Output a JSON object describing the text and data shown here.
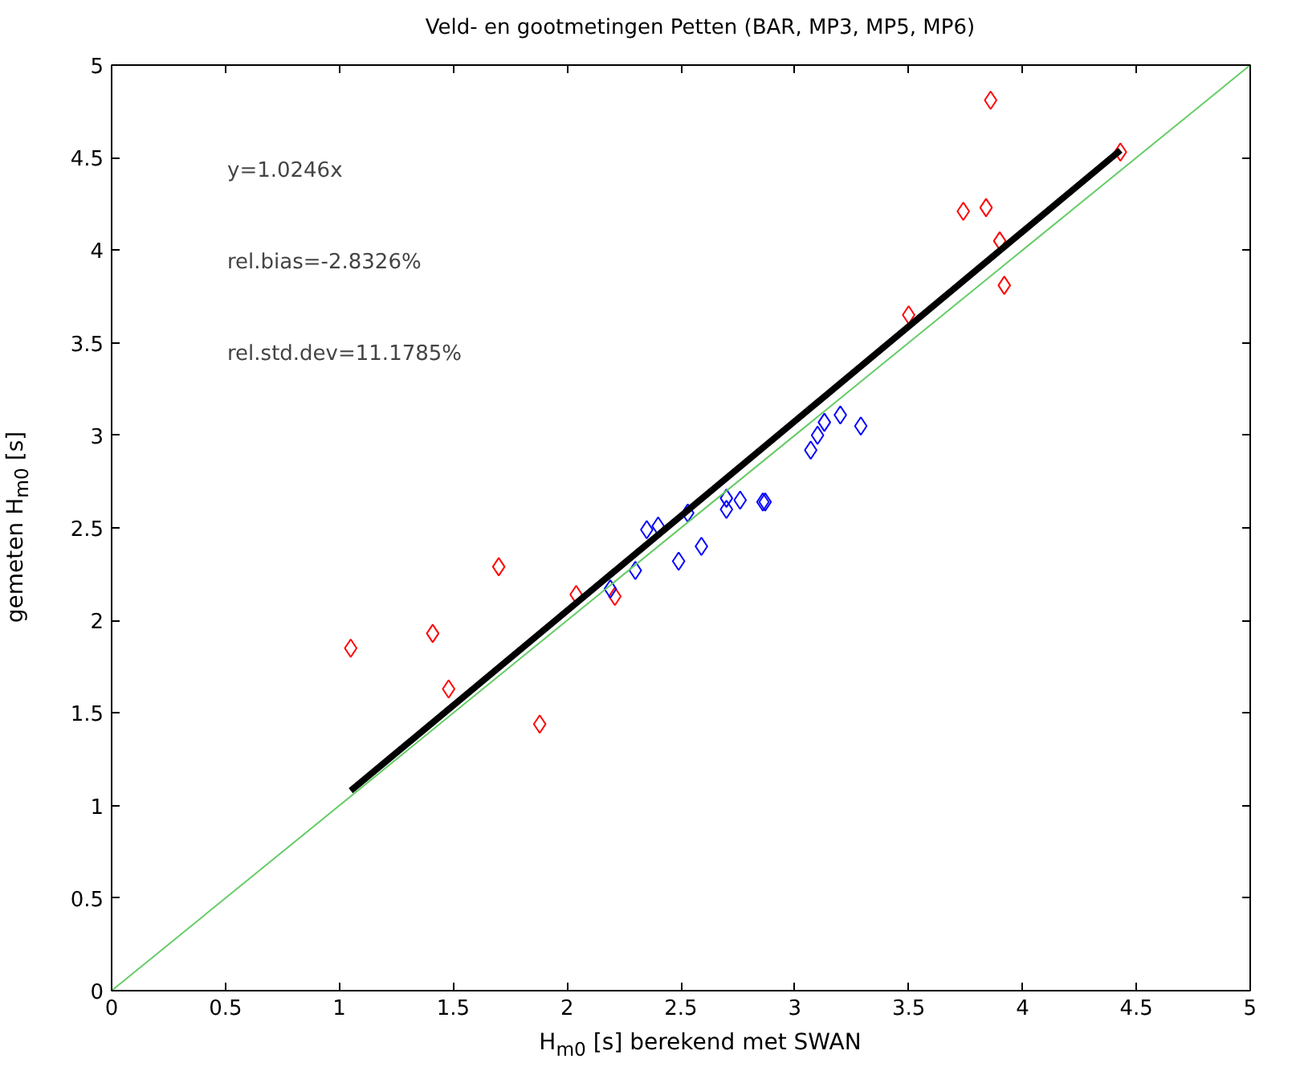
{
  "chart_data": {
    "type": "scatter",
    "title": "Veld- en gootmetingen Petten (BAR, MP3, MP5, MP6)",
    "xlabel": "H$_{m0}$ [s] berekend met SWAN",
    "ylabel": "gemeten H$_{m0}$ [s]",
    "xlim": [
      0,
      5
    ],
    "ylim": [
      0,
      5
    ],
    "xticks": [
      0,
      0.5,
      1,
      1.5,
      2,
      2.5,
      3,
      3.5,
      4,
      4.5,
      5
    ],
    "yticks": [
      0,
      0.5,
      1,
      1.5,
      2,
      2.5,
      3,
      3.5,
      4,
      4.5,
      5
    ],
    "grid": false,
    "marker": "diamond",
    "annotations": [
      "y=1.0246x",
      "rel.bias=-2.8326%",
      "rel.std.dev=11.1785%"
    ],
    "series": [
      {
        "color": "#ff0000",
        "x": [
          1.05,
          1.41,
          1.48,
          1.7,
          1.88,
          2.04,
          2.21,
          3.5,
          3.74,
          3.84,
          3.9,
          3.92,
          3.86,
          4.43
        ],
        "values": [
          1.85,
          1.93,
          1.63,
          2.29,
          1.44,
          2.14,
          2.13,
          3.65,
          4.21,
          4.23,
          4.05,
          3.81,
          4.81,
          4.53
        ]
      },
      {
        "color": "#0000ff",
        "x": [
          2.35,
          2.4,
          2.53,
          2.3,
          2.19,
          2.49,
          2.59,
          2.7,
          2.7,
          2.76,
          2.86,
          2.87,
          3.07,
          3.1,
          3.13,
          3.2,
          3.29
        ],
        "values": [
          2.49,
          2.51,
          2.58,
          2.27,
          2.17,
          2.32,
          2.4,
          2.66,
          2.6,
          2.65,
          2.64,
          2.64,
          2.92,
          3.0,
          3.07,
          3.11,
          3.05
        ]
      },
      {
        "color": "#66cc66",
        "type": "line",
        "marker": "none",
        "x": [
          0,
          5
        ],
        "values": [
          0,
          5
        ]
      },
      {
        "color": "#000000",
        "type": "line",
        "marker": "none",
        "x": [
          1.05,
          4.43
        ],
        "values": [
          1.08,
          4.54
        ]
      }
    ]
  }
}
